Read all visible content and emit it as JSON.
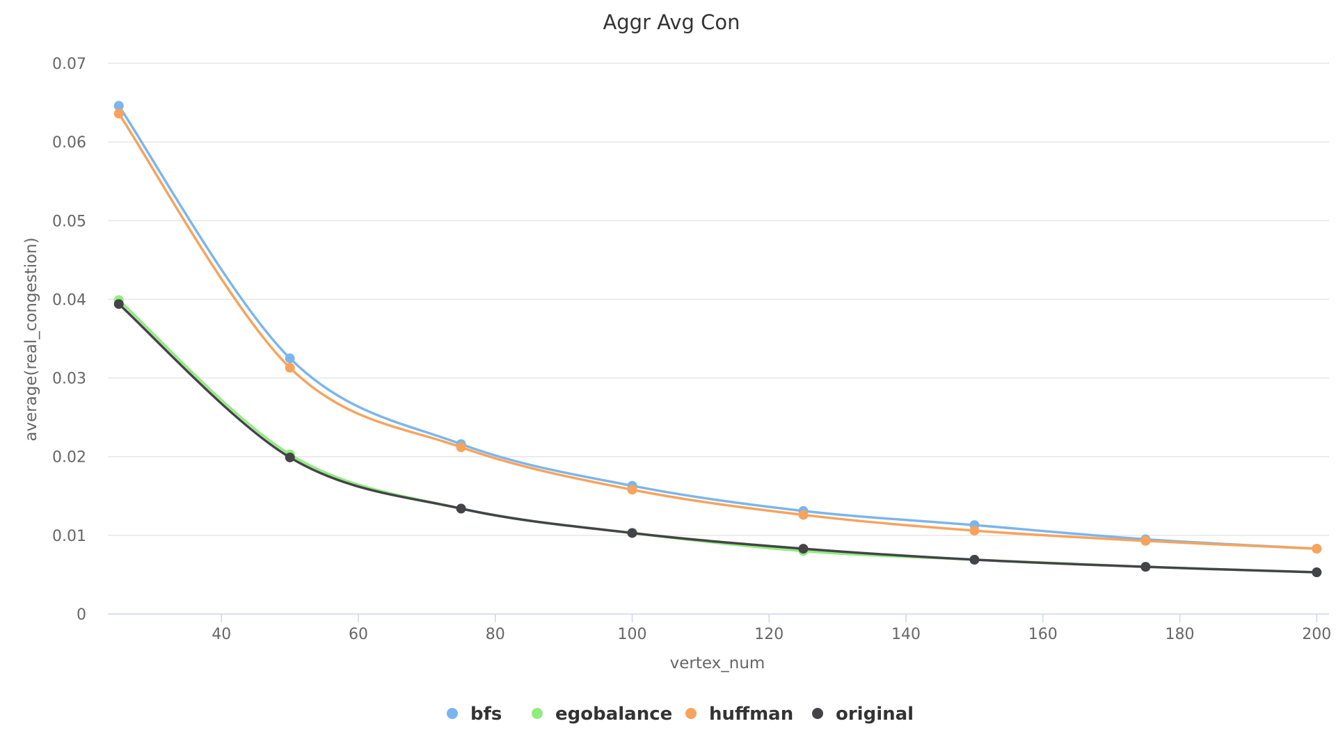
{
  "chart_data": {
    "type": "line",
    "title": "Aggr Avg Con",
    "xlabel": "vertex_num",
    "ylabel": "average(real_congestion)",
    "x": [
      25,
      50,
      75,
      100,
      125,
      150,
      175,
      200
    ],
    "xlim": [
      23.4,
      201.8
    ],
    "xticks": [
      40,
      60,
      80,
      100,
      120,
      140,
      160,
      180,
      200
    ],
    "ylim": [
      0,
      0.07
    ],
    "yticks": [
      0,
      0.01,
      0.02,
      0.03,
      0.04,
      0.05,
      0.06,
      0.07
    ],
    "ytick_labels": [
      "0",
      "0.01",
      "0.02",
      "0.03",
      "0.04",
      "0.05",
      "0.06",
      "0.07"
    ],
    "grid": true,
    "legend_position": "bottom-center",
    "series": [
      {
        "name": "bfs",
        "color": "#7cb5ec",
        "values": [
          0.0646,
          0.0325,
          0.0216,
          0.0163,
          0.0131,
          0.0113,
          0.0095,
          0.0083
        ]
      },
      {
        "name": "egobalance",
        "color": "#90ed7d",
        "values": [
          0.0399,
          0.0203,
          0.0134,
          0.0103,
          0.008,
          0.0069,
          0.006,
          0.0053
        ]
      },
      {
        "name": "huffman",
        "color": "#f7a35c",
        "values": [
          0.0636,
          0.0313,
          0.0212,
          0.0158,
          0.0126,
          0.0106,
          0.0093,
          0.0083
        ]
      },
      {
        "name": "original",
        "color": "#434348",
        "values": [
          0.0394,
          0.0199,
          0.0134,
          0.0103,
          0.0083,
          0.0069,
          0.006,
          0.0053
        ]
      }
    ]
  }
}
